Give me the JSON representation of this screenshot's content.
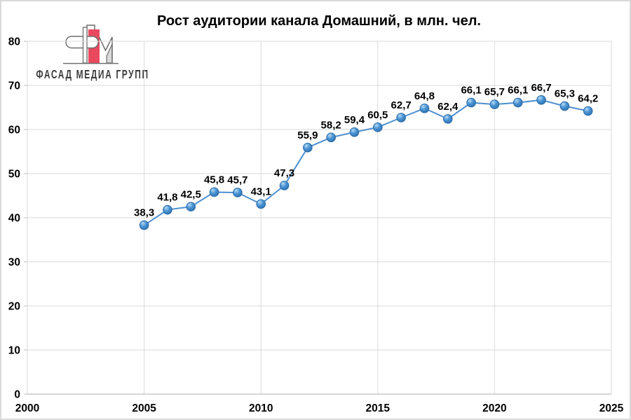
{
  "frame": {
    "background": "#ffffff",
    "border_color": "#d9d9d9"
  },
  "logo": {
    "caption": "ФАСАД МЕДИА ГРУПП",
    "colors": {
      "red": "#e8495f",
      "outline": "#6f6f6f",
      "light_fill": "#d9d9d9",
      "text": "#3d3d3d"
    }
  },
  "chart_data": {
    "type": "line",
    "title": "Рост аудитории канала Домашний, в млн. чел.",
    "x": [
      2005,
      2006,
      2007,
      2008,
      2009,
      2010,
      2011,
      2012,
      2013,
      2014,
      2015,
      2016,
      2017,
      2018,
      2019,
      2020,
      2021,
      2022,
      2023,
      2024
    ],
    "values": [
      38.3,
      41.8,
      42.5,
      45.8,
      45.7,
      43.1,
      47.3,
      55.9,
      58.2,
      59.4,
      60.5,
      62.7,
      64.8,
      62.4,
      66.1,
      65.7,
      66.1,
      66.7,
      65.3,
      64.2
    ],
    "point_labels": [
      "38,3",
      "41,8",
      "42,5",
      "45,8",
      "45,7",
      "43,1",
      "47,3",
      "55,9",
      "58,2",
      "59,4",
      "60,5",
      "62,7",
      "64,8",
      "62,4",
      "66,1",
      "65,7",
      "66,1",
      "66,7",
      "65,3",
      "64,2"
    ],
    "xlim": [
      2000,
      2025
    ],
    "ylim": [
      0,
      80
    ],
    "x_ticks": [
      2000,
      2005,
      2010,
      2015,
      2020,
      2025
    ],
    "x_tick_labels": [
      "2000",
      "2005",
      "2010",
      "2015",
      "2020",
      "2025"
    ],
    "y_ticks": [
      0,
      10,
      20,
      30,
      40,
      50,
      60,
      70,
      80
    ],
    "y_tick_labels": [
      "0",
      "10",
      "20",
      "30",
      "40",
      "50",
      "60",
      "70",
      "80"
    ],
    "grid": true,
    "legend": "none",
    "colors": {
      "line": "#4f8fd1",
      "marker_stroke": "#2a6aa5",
      "marker_light": "#b5dcf5",
      "marker_mid": "#4e96d6",
      "marker_dark": "#2b6fae",
      "grid": "#dadada",
      "axis": "#bfbfbf",
      "tick_text": "#000000",
      "label_text": "#000000",
      "title_text": "#000000"
    }
  }
}
